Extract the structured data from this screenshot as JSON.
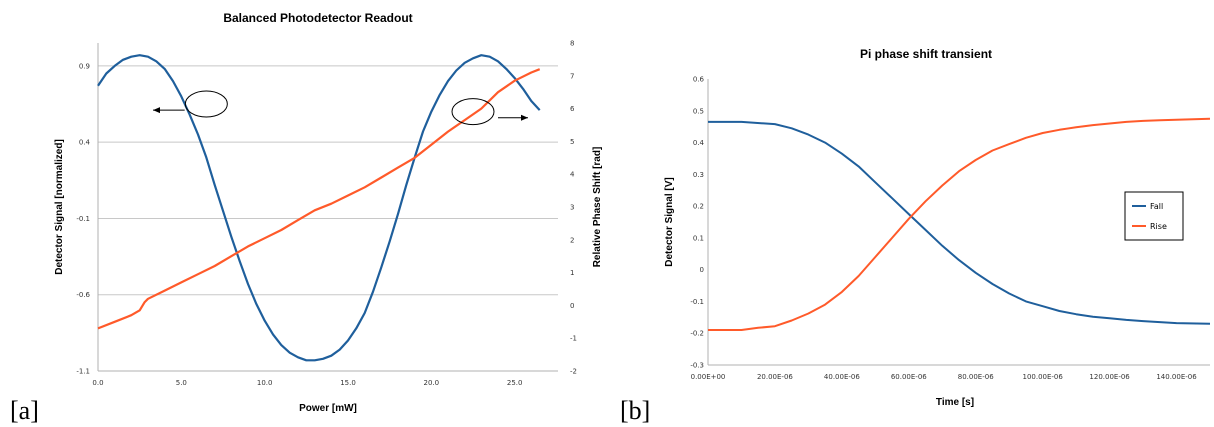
{
  "figure_labels": {
    "a": "[a]",
    "b": "[b]"
  },
  "colors": {
    "series_blue": "#1f5f9c",
    "series_orange": "#ff5a2a",
    "grid": "#c8c8c8"
  },
  "chart_data": [
    {
      "id": "a",
      "type": "line",
      "title": "Balanced Photodetector Readout",
      "xlabel": "Power [mW]",
      "ylabel": "Detector Signal [normalized]",
      "y2label": "Relative Phase Shift [rad]",
      "xlim": [
        0,
        27.6
      ],
      "ylim": [
        -1.1,
        1.05
      ],
      "y2lim": [
        -2,
        8
      ],
      "xticks": [
        "0.0",
        "5.0",
        "10.0",
        "15.0",
        "20.0",
        "25.0"
      ],
      "xtick_values": [
        0,
        5,
        10,
        15,
        20,
        25
      ],
      "yticks": [
        "0.9",
        "0.4",
        "-0.1",
        "-0.6",
        "-1.1"
      ],
      "ytick_values": [
        0.9,
        0.4,
        -0.1,
        -0.6,
        -1.1
      ],
      "y2ticks": [
        "8",
        "7",
        "6",
        "5",
        "4",
        "3",
        "2",
        "1",
        "0",
        "-1",
        "-2"
      ],
      "y2tick_values": [
        8,
        7,
        6,
        5,
        4,
        3,
        2,
        1,
        0,
        -1,
        -2
      ],
      "grid": "horizontal",
      "series": [
        {
          "axis": "left",
          "color": "#1f5f9c",
          "points": [
            [
              0,
              0.77
            ],
            [
              0.5,
              0.85
            ],
            [
              1.0,
              0.9
            ],
            [
              1.5,
              0.94
            ],
            [
              2.0,
              0.96
            ],
            [
              2.5,
              0.97
            ],
            [
              3.0,
              0.96
            ],
            [
              3.5,
              0.93
            ],
            [
              4.0,
              0.88
            ],
            [
              4.5,
              0.8
            ],
            [
              5.0,
              0.7
            ],
            [
              5.5,
              0.58
            ],
            [
              6.0,
              0.45
            ],
            [
              6.5,
              0.3
            ],
            [
              7.0,
              0.12
            ],
            [
              7.5,
              -0.05
            ],
            [
              8.0,
              -0.22
            ],
            [
              8.5,
              -0.38
            ],
            [
              9.0,
              -0.53
            ],
            [
              9.5,
              -0.66
            ],
            [
              10.0,
              -0.77
            ],
            [
              10.5,
              -0.86
            ],
            [
              11.0,
              -0.93
            ],
            [
              11.5,
              -0.98
            ],
            [
              12.0,
              -1.01
            ],
            [
              12.5,
              -1.03
            ],
            [
              13.0,
              -1.03
            ],
            [
              13.5,
              -1.02
            ],
            [
              14.0,
              -1.0
            ],
            [
              14.5,
              -0.96
            ],
            [
              15.0,
              -0.9
            ],
            [
              15.5,
              -0.82
            ],
            [
              16.0,
              -0.72
            ],
            [
              16.5,
              -0.58
            ],
            [
              17.0,
              -0.42
            ],
            [
              17.5,
              -0.25
            ],
            [
              18.0,
              -0.07
            ],
            [
              18.5,
              0.12
            ],
            [
              19.0,
              0.3
            ],
            [
              19.5,
              0.47
            ],
            [
              20.0,
              0.6
            ],
            [
              20.5,
              0.71
            ],
            [
              21.0,
              0.8
            ],
            [
              21.5,
              0.87
            ],
            [
              22.0,
              0.92
            ],
            [
              22.5,
              0.95
            ],
            [
              23.0,
              0.97
            ],
            [
              23.5,
              0.96
            ],
            [
              24.0,
              0.93
            ],
            [
              24.5,
              0.88
            ],
            [
              25.0,
              0.82
            ],
            [
              25.5,
              0.75
            ],
            [
              26.0,
              0.67
            ],
            [
              26.5,
              0.61
            ]
          ]
        },
        {
          "axis": "right",
          "color": "#ff5a2a",
          "points": [
            [
              0,
              -0.7
            ],
            [
              1,
              -0.5
            ],
            [
              2,
              -0.3
            ],
            [
              2.5,
              -0.15
            ],
            [
              2.8,
              0.1
            ],
            [
              3,
              0.2
            ],
            [
              4,
              0.45
            ],
            [
              5,
              0.7
            ],
            [
              6,
              0.95
            ],
            [
              7,
              1.2
            ],
            [
              8,
              1.5
            ],
            [
              9,
              1.8
            ],
            [
              10,
              2.05
            ],
            [
              11,
              2.3
            ],
            [
              12,
              2.6
            ],
            [
              13,
              2.9
            ],
            [
              14,
              3.1
            ],
            [
              15,
              3.35
            ],
            [
              16,
              3.6
            ],
            [
              17,
              3.9
            ],
            [
              18,
              4.2
            ],
            [
              19,
              4.5
            ],
            [
              20,
              4.9
            ],
            [
              21,
              5.3
            ],
            [
              22,
              5.65
            ],
            [
              23,
              6.0
            ],
            [
              24,
              6.5
            ],
            [
              25,
              6.85
            ],
            [
              26,
              7.1
            ],
            [
              26.5,
              7.2
            ]
          ]
        }
      ],
      "annotations": [
        {
          "ellipse_at": [
            6.5,
            0.65
          ],
          "arrow_from": [
            5.2,
            0.61
          ],
          "arrow_to": [
            3.3,
            0.61
          ]
        },
        {
          "ellipse_at": [
            22.5,
            0.6
          ],
          "arrow_from": [
            24.0,
            0.56
          ],
          "arrow_to": [
            25.8,
            0.56
          ]
        }
      ]
    },
    {
      "id": "b",
      "type": "line",
      "title": "Pi phase shift transient",
      "xlabel": "Time [s]",
      "ylabel": "Detector Signal [V]",
      "xlim": [
        0,
        0.00015
      ],
      "ylim": [
        -0.3,
        0.6
      ],
      "xticks": [
        "0.00E+00",
        "20.00E-06",
        "40.00E-06",
        "60.00E-06",
        "80.00E-06",
        "100.00E-06",
        "120.00E-06",
        "140.00E-06"
      ],
      "xtick_values": [
        0,
        2e-05,
        4e-05,
        6e-05,
        8e-05,
        0.0001,
        0.00012,
        0.00014
      ],
      "yticks": [
        "0.6",
        "0.5",
        "0.4",
        "0.3",
        "0.2",
        "0.1",
        "0",
        "-0.1",
        "-0.2",
        "-0.3"
      ],
      "ytick_values": [
        0.6,
        0.5,
        0.4,
        0.3,
        0.2,
        0.1,
        0,
        -0.1,
        -0.2,
        -0.3
      ],
      "grid": "none",
      "legend": "right",
      "series": [
        {
          "name": "Fall",
          "color": "#1f5f9c",
          "points": [
            [
              0,
              0.465
            ],
            [
              1e-05,
              0.465
            ],
            [
              2e-05,
              0.458
            ],
            [
              2.5e-05,
              0.445
            ],
            [
              3e-05,
              0.425
            ],
            [
              3.5e-05,
              0.4
            ],
            [
              4e-05,
              0.365
            ],
            [
              4.5e-05,
              0.325
            ],
            [
              5e-05,
              0.275
            ],
            [
              5.5e-05,
              0.225
            ],
            [
              6e-05,
              0.175
            ],
            [
              6.5e-05,
              0.125
            ],
            [
              7e-05,
              0.075
            ],
            [
              7.5e-05,
              0.03
            ],
            [
              8e-05,
              -0.01
            ],
            [
              8.5e-05,
              -0.045
            ],
            [
              9e-05,
              -0.075
            ],
            [
              9.5e-05,
              -0.1
            ],
            [
              0.0001,
              -0.115
            ],
            [
              0.000105,
              -0.13
            ],
            [
              0.00011,
              -0.14
            ],
            [
              0.000115,
              -0.148
            ],
            [
              0.00012,
              -0.153
            ],
            [
              0.000125,
              -0.158
            ],
            [
              0.00013,
              -0.162
            ],
            [
              0.000135,
              -0.165
            ],
            [
              0.00014,
              -0.168
            ],
            [
              0.00015,
              -0.17
            ]
          ]
        },
        {
          "name": "Rise",
          "color": "#ff5a2a",
          "points": [
            [
              0,
              -0.19
            ],
            [
              1e-05,
              -0.19
            ],
            [
              1.5e-05,
              -0.183
            ],
            [
              2e-05,
              -0.178
            ],
            [
              2.5e-05,
              -0.16
            ],
            [
              3e-05,
              -0.138
            ],
            [
              3.5e-05,
              -0.11
            ],
            [
              4e-05,
              -0.07
            ],
            [
              4.5e-05,
              -0.02
            ],
            [
              5e-05,
              0.04
            ],
            [
              5.5e-05,
              0.1
            ],
            [
              6e-05,
              0.16
            ],
            [
              6.5e-05,
              0.215
            ],
            [
              7e-05,
              0.265
            ],
            [
              7.5e-05,
              0.31
            ],
            [
              8e-05,
              0.345
            ],
            [
              8.5e-05,
              0.375
            ],
            [
              9e-05,
              0.395
            ],
            [
              9.5e-05,
              0.415
            ],
            [
              0.0001,
              0.43
            ],
            [
              0.000105,
              0.44
            ],
            [
              0.00011,
              0.448
            ],
            [
              0.000115,
              0.455
            ],
            [
              0.00012,
              0.46
            ],
            [
              0.000125,
              0.465
            ],
            [
              0.00013,
              0.468
            ],
            [
              0.000135,
              0.47
            ],
            [
              0.00014,
              0.472
            ],
            [
              0.00015,
              0.475
            ]
          ]
        }
      ]
    }
  ]
}
